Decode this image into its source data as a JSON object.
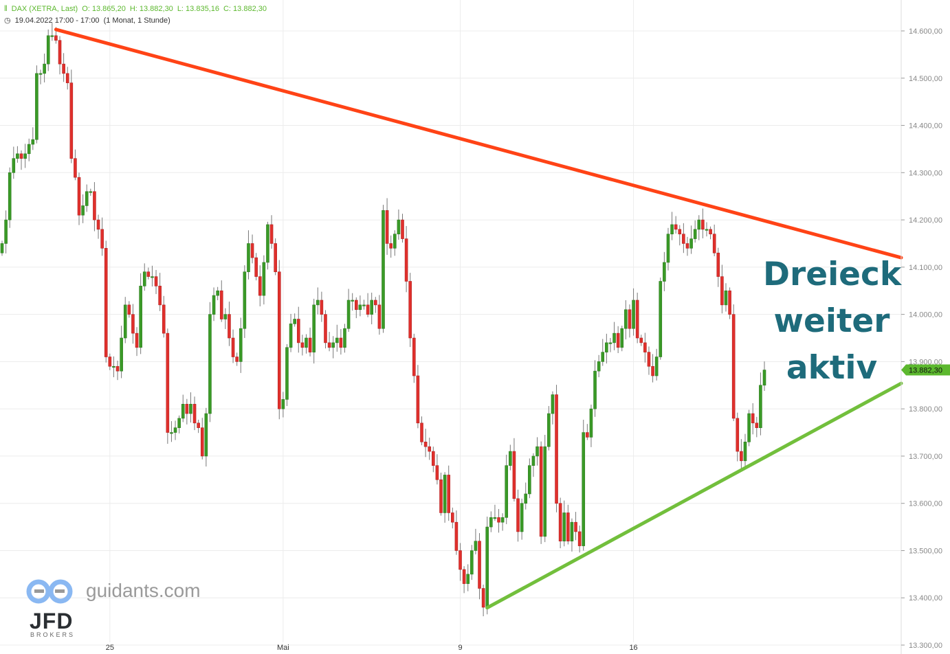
{
  "header": {
    "instrument": "DAX (XETRA, Last)",
    "open": "O: 13.865,20",
    "high": "H: 13.882,30",
    "low": "L: 13.835,16",
    "close": "C: 13.882,30",
    "timestamp": "19.04.2022 17:00 - 17:00",
    "range": "(1 Monat, 1 Stunde)",
    "icon": "candlestick-icon",
    "clock_icon": "clock-icon"
  },
  "annotation": [
    "Dreieck",
    "weiter",
    "aktiv"
  ],
  "watermark": {
    "site": "guidants.com",
    "broker": "JFD",
    "broker_sub": "BROKERS"
  },
  "colors": {
    "up": "#3a9a27",
    "down": "#e0302c",
    "resistance": "#ff4316",
    "support": "#72bf3c",
    "annotation": "#1e6b7b",
    "price_tag": "#5cb82e"
  },
  "chart_data": {
    "type": "candlestick",
    "title": "DAX (XETRA, Last)",
    "interval": "1 Stunde",
    "period": "1 Monat",
    "ylim": [
      13300,
      14650
    ],
    "grid": true,
    "y_ticks": [
      "14.600,00",
      "14.500,00",
      "14.400,00",
      "14.300,00",
      "14.200,00",
      "14.100,00",
      "14.000,00",
      "13.900,00",
      "13.800,00",
      "13.700,00",
      "13.600,00",
      "13.500,00",
      "13.400,00",
      "13.300,00"
    ],
    "y_tick_values": [
      14600,
      14500,
      14400,
      14300,
      14200,
      14100,
      14000,
      13900,
      13800,
      13700,
      13600,
      13500,
      13400,
      13300
    ],
    "x_ticks": [
      {
        "label": "25",
        "index": 28
      },
      {
        "label": "Mai",
        "index": 73
      },
      {
        "label": "9",
        "index": 119
      },
      {
        "label": "16",
        "index": 164
      }
    ],
    "last_price": 13882.3,
    "last_price_label": "13.882,30",
    "first_open": 14130,
    "closes": [
      14150,
      14200,
      14300,
      14330,
      14340,
      14330,
      14340,
      14360,
      14370,
      14510,
      14510,
      14530,
      14590,
      14590,
      14580,
      14530,
      14510,
      14490,
      14330,
      14290,
      14210,
      14230,
      14260,
      14260,
      14200,
      14180,
      14140,
      13910,
      13890,
      13890,
      13880,
      13950,
      14020,
      14000,
      13960,
      13930,
      14060,
      14090,
      14080,
      14080,
      14060,
      14020,
      13960,
      13750,
      13750,
      13760,
      13780,
      13810,
      13790,
      13810,
      13770,
      13760,
      13700,
      13790,
      14000,
      14040,
      14050,
      13990,
      14000,
      13950,
      13910,
      13900,
      13970,
      14090,
      14150,
      14120,
      14080,
      14040,
      14110,
      14190,
      14150,
      14090,
      13800,
      13820,
      13930,
      13980,
      13990,
      13940,
      13930,
      13950,
      13920,
      14020,
      14030,
      14000,
      13940,
      13930,
      13940,
      13950,
      13930,
      13970,
      14030,
      14030,
      14010,
      14020,
      14020,
      14000,
      14030,
      14020,
      13970,
      14220,
      14150,
      14140,
      14170,
      14200,
      14160,
      14070,
      13950,
      13870,
      13770,
      13730,
      13720,
      13710,
      13680,
      13650,
      13580,
      13660,
      13580,
      13560,
      13500,
      13460,
      13430,
      13450,
      13500,
      13520,
      13420,
      13380,
      13550,
      13570,
      13570,
      13560,
      13570,
      13680,
      13710,
      13610,
      13540,
      13600,
      13620,
      13680,
      13700,
      13720,
      13530,
      13720,
      13790,
      13830,
      13600,
      13520,
      13580,
      13520,
      13560,
      13540,
      13510,
      13750,
      13740,
      13800,
      13880,
      13900,
      13920,
      13940,
      13940,
      13960,
      13930,
      13970,
      14010,
      13970,
      14030,
      13950,
      13940,
      13920,
      13890,
      13870,
      13910,
      14070,
      14110,
      14170,
      14190,
      14180,
      14170,
      14150,
      14140,
      14160,
      14180,
      14200,
      14180,
      14180,
      14170,
      14130,
      14080,
      14020,
      14050,
      14000,
      13780,
      13710,
      13690,
      13730,
      13790,
      13770,
      13760,
      13850,
      13882.3
    ],
    "trendlines": [
      {
        "kind": "resistance",
        "start_index": 14,
        "start_price": 14603,
        "end_price": 14120
      },
      {
        "kind": "support",
        "start_index": 126,
        "start_price": 13379,
        "end_price": 13854
      }
    ]
  }
}
